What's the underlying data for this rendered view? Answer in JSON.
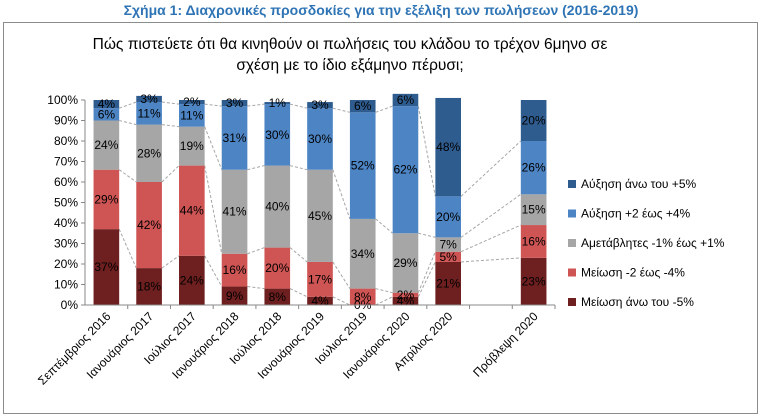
{
  "figure_caption": "Σχήμα 1: Διαχρονικές προσδοκίες για την εξέλιξη των πωλήσεων (2016-2019)",
  "colors": {
    "caption": "#2e74b5",
    "series": [
      "#6e1f1f",
      "#cf5454",
      "#a6a6a6",
      "#4d84c4",
      "#2f5c8f"
    ],
    "connector": "#a6a6a6"
  },
  "chart_data": {
    "type": "bar",
    "stacked": "percent",
    "title_line1": "Πώς πιστεύετε ότι θα κινηθούν οι πωλήσεις του κλάδου το τρέχον 6μηνο σε",
    "title_line2": "σχέση με το ίδιο εξάμηνο πέρυσι;",
    "categories": [
      "Σεπτέμβριος 2016",
      "Ιανουάριος 2017",
      "Ιούλιος 2017",
      "Ιανουάριος 2018",
      "Ιούλιος 2018",
      "Ιανουάριος 2019",
      "Ιούλιος 2019",
      "Ιανουάριος 2020",
      "Απρίλιος 2020",
      "",
      "Πρόβλεψη 2020"
    ],
    "y_ticks": [
      "0%",
      "10%",
      "20%",
      "30%",
      "40%",
      "50%",
      "60%",
      "70%",
      "80%",
      "90%",
      "100%"
    ],
    "ylim": [
      0,
      100
    ],
    "grid": false,
    "legend_position": "right",
    "series": [
      {
        "name": "Μείωση άνω του -5%",
        "values": [
          37,
          18,
          24,
          9,
          8,
          4,
          0,
          4,
          21,
          null,
          23
        ],
        "labels": [
          "37%",
          "18%",
          "24%",
          "9%",
          "8%",
          "4%",
          "0%",
          "4%",
          "21%",
          "",
          "23%"
        ]
      },
      {
        "name": "Μείωση -2 έως -4%",
        "values": [
          29,
          42,
          44,
          16,
          20,
          17,
          8,
          2,
          5,
          null,
          16
        ],
        "labels": [
          "29%",
          "42%",
          "44%",
          "16%",
          "20%",
          "17%",
          "8%",
          "2%",
          "5%",
          "",
          "16%"
        ]
      },
      {
        "name": "Αμετάβλητες -1% έως +1%",
        "values": [
          24,
          28,
          19,
          41,
          40,
          45,
          34,
          29,
          7,
          null,
          15
        ],
        "labels": [
          "24%",
          "28%",
          "19%",
          "41%",
          "40%",
          "45%",
          "34%",
          "29%",
          "7%",
          "",
          "15%"
        ]
      },
      {
        "name": "Αύξηση +2 έως +4%",
        "values": [
          6,
          11,
          11,
          31,
          30,
          30,
          52,
          62,
          20,
          null,
          26
        ],
        "labels": [
          "6%",
          "11%",
          "11%",
          "31%",
          "30%",
          "30%",
          "52%",
          "62%",
          "20%",
          "",
          "26%"
        ]
      },
      {
        "name": "Αύξηση άνω του +5%",
        "values": [
          4,
          3,
          2,
          3,
          1,
          3,
          6,
          6,
          48,
          null,
          20
        ],
        "labels": [
          "4%",
          "3%",
          "2%",
          "3%",
          "1%",
          "3%",
          "6%",
          "6%",
          "48%",
          "",
          "20%"
        ]
      }
    ],
    "legend_order": [
      4,
      3,
      2,
      1,
      0
    ]
  }
}
